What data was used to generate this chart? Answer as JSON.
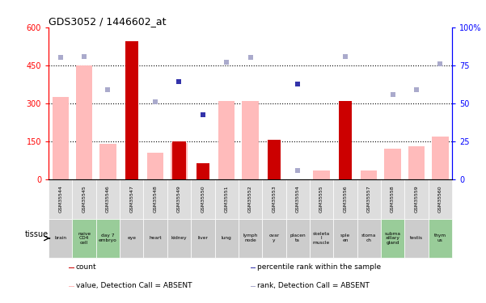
{
  "title": "GDS3052 / 1446602_at",
  "samples": [
    "GSM35544",
    "GSM35545",
    "GSM35546",
    "GSM35547",
    "GSM35548",
    "GSM35549",
    "GSM35550",
    "GSM35551",
    "GSM35552",
    "GSM35553",
    "GSM35554",
    "GSM35555",
    "GSM35556",
    "GSM35557",
    "GSM35558",
    "GSM35559",
    "GSM35560"
  ],
  "tissues": [
    "brain",
    "naive\nCD4\ncell",
    "day 7\nembryо",
    "eye",
    "heart",
    "kidney",
    "liver",
    "lung",
    "lymph\nnode",
    "ovar\ny",
    "placen\nta",
    "skeleta\nl\nmuscle",
    "sple\nen",
    "stoma\nch",
    "subma\nxillary\ngland",
    "testis",
    "thym\nus"
  ],
  "tissue_green": [
    false,
    true,
    true,
    false,
    false,
    false,
    false,
    false,
    false,
    false,
    false,
    false,
    false,
    false,
    true,
    false,
    true
  ],
  "value_absent": [
    325,
    450,
    140,
    null,
    105,
    145,
    null,
    310,
    310,
    null,
    null,
    35,
    null,
    35,
    120,
    130,
    170
  ],
  "rank_absent": [
    480,
    483,
    355,
    null,
    305,
    null,
    null,
    463,
    480,
    null,
    35,
    null,
    483,
    null,
    335,
    355,
    455
  ],
  "count": [
    null,
    null,
    null,
    545,
    null,
    150,
    65,
    null,
    null,
    155,
    null,
    null,
    310,
    null,
    null,
    null,
    null
  ],
  "percentile": [
    null,
    null,
    null,
    null,
    null,
    385,
    255,
    null,
    null,
    null,
    375,
    null,
    null,
    null,
    null,
    null,
    null
  ],
  "ylim_left": [
    0,
    600
  ],
  "yticks_left": [
    0,
    150,
    300,
    450,
    600
  ],
  "yticks_right": [
    0,
    25,
    50,
    75,
    100
  ],
  "color_count": "#cc0000",
  "color_percentile": "#3333aa",
  "color_value_absent": "#ffbbbb",
  "color_rank_absent": "#aaaacc",
  "color_tissue_green": "#99cc99",
  "color_tissue_gray": "#cccccc",
  "color_gsm_bg": "#dddddd",
  "gridline_ticks": [
    150,
    300,
    450
  ]
}
